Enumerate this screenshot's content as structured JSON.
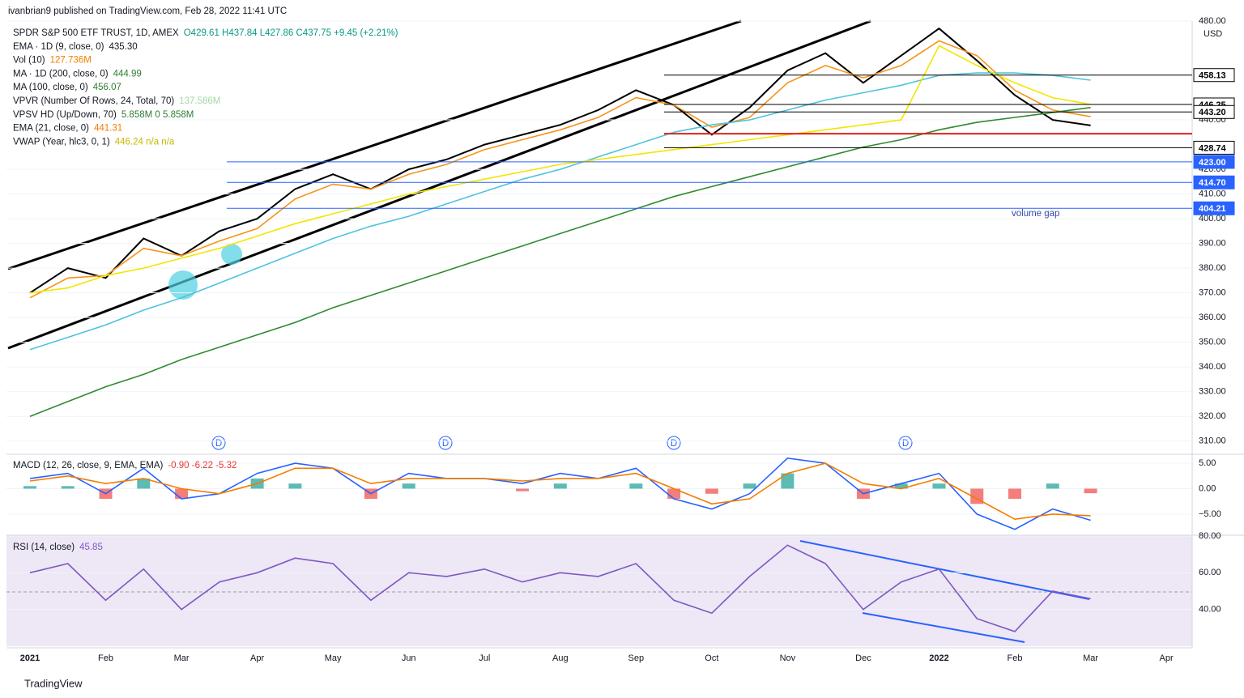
{
  "header": {
    "byline": "ivanbrian9 published on TradingView.com, Feb 28, 2022 11:41 UTC",
    "currency": "USD",
    "footer": "TradingView",
    "annotation": "volume gap",
    "dividend_markers": [
      "D",
      "D",
      "D",
      "D"
    ],
    "legend": [
      {
        "name": "SPDR S&P 500 ETF TRUST, 1D, AMEX",
        "value": "O429.61 H437.84 L427.86 C437.75 +9.45 (+2.21%)",
        "color": "#089981"
      },
      {
        "name": "EMA · 1D (9, close, 0)",
        "value": "435.30",
        "color": "#131722"
      },
      {
        "name": "Vol (10)",
        "value": "127.736M",
        "color": "#f57c00"
      },
      {
        "name": "MA · 1D (200, close, 0)",
        "value": "444.99",
        "color": "#2e7d32"
      },
      {
        "name": "MA (100, close, 0)",
        "value": "456.07",
        "color": "#2e7d32"
      },
      {
        "name": "VPVR (Number Of Rows, 24, Total, 70)",
        "value": "137.586M",
        "color": "#a5d6a7"
      },
      {
        "name": "VPSV HD (Up/Down, 70)",
        "value": "5.858M 0 5.858M",
        "color": "#2e7d32"
      },
      {
        "name": "EMA (21, close, 0)",
        "value": "441.31",
        "color": "#f57c00"
      },
      {
        "name": "VWAP (Year, hlc3, 0, 1)",
        "value": "446.24 n/a n/a",
        "color": "#c9b800"
      }
    ]
  },
  "chart_data": [
    {
      "type": "line",
      "categories": [
        "2021",
        null,
        "Feb",
        null,
        "Mar",
        null,
        "Apr",
        null,
        "May",
        null,
        "Jun",
        null,
        "Jul",
        null,
        "Aug",
        null,
        "Sep",
        null,
        "Oct",
        null,
        "Nov",
        null,
        "Dec",
        null,
        "2022",
        null,
        "Feb",
        null,
        "Mar",
        null,
        "Apr",
        null
      ],
      "series": [
        {
          "color": "#000000",
          "values": [
            370,
            380,
            376,
            392,
            385,
            395,
            400,
            412,
            418,
            412,
            420,
            424,
            430,
            434,
            438,
            444,
            452,
            446,
            434,
            445,
            460,
            467,
            455,
            466,
            477,
            464,
            450,
            440,
            437.75,
            null,
            null,
            null
          ]
        },
        {
          "color": "#f7931a",
          "values": [
            368,
            376,
            377,
            388,
            385,
            391,
            396,
            408,
            414,
            412,
            418,
            422,
            428,
            432,
            436,
            441,
            449,
            446,
            437,
            441,
            455,
            462,
            457,
            462,
            472,
            466,
            452,
            444,
            441.31,
            null,
            null,
            null
          ]
        },
        {
          "color": "#4fc3dd",
          "values": [
            347,
            352,
            357,
            363,
            368,
            374,
            380,
            386,
            392,
            397,
            401,
            406,
            411,
            416,
            420,
            425,
            430,
            435,
            438,
            440,
            444,
            448,
            451,
            454,
            458,
            459,
            459,
            458,
            456.07,
            null,
            null,
            null
          ]
        },
        {
          "color": "#2e8b2e",
          "values": [
            320,
            326,
            332,
            337,
            343,
            348,
            353,
            358,
            364,
            369,
            374,
            379,
            384,
            389,
            394,
            399,
            404,
            409,
            413,
            417,
            421,
            425,
            429,
            432,
            436,
            439,
            441,
            443,
            444.99,
            null,
            null,
            null
          ]
        },
        {
          "color": "#f2e600",
          "values": [
            370,
            372,
            377,
            380,
            384,
            388,
            393,
            398,
            402,
            406,
            410,
            413,
            416,
            419,
            422,
            424,
            426,
            428,
            430,
            432,
            434,
            436,
            438,
            440,
            470,
            462,
            455,
            449,
            446.24,
            null,
            null,
            null
          ]
        }
      ],
      "levels": [
        {
          "value": 458.13,
          "label": "458.13",
          "color": "#000000"
        },
        {
          "value": 446.25,
          "label": "446.25",
          "color": "#000000"
        },
        {
          "value": 443.2,
          "label": "443.20",
          "color": "#000000"
        },
        {
          "value": 434.4,
          "color": "#e0201b"
        },
        {
          "value": 428.74,
          "label": "428.74",
          "color": "#000000"
        },
        {
          "value": 423,
          "label": "423.00",
          "color": "#2962ff"
        },
        {
          "value": 414.7,
          "label": "414.70",
          "color": "#2962ff"
        },
        {
          "value": 404.21,
          "label": "404.21",
          "color": "#2962ff"
        }
      ],
      "ylim": [
        305,
        480
      ],
      "yticks": [
        {
          "value": 310,
          "label": "310.00"
        },
        {
          "value": 320,
          "label": "320.00"
        },
        {
          "value": 330,
          "label": "330.00"
        },
        {
          "value": 340,
          "label": "340.00"
        },
        {
          "value": 350,
          "label": "350.00"
        },
        {
          "value": 360,
          "label": "360.00"
        },
        {
          "value": 370,
          "label": "370.00"
        },
        {
          "value": 380,
          "label": "380.00"
        },
        {
          "value": 390,
          "label": "390.00"
        },
        {
          "value": 400,
          "label": "400.00"
        },
        {
          "value": 410,
          "label": "410.00"
        },
        {
          "value": 420,
          "label": "420.00"
        },
        {
          "value": 440,
          "label": "440.00"
        },
        {
          "value": 480,
          "label": "480.00"
        }
      ]
    },
    {
      "type": "line",
      "title": "MACD (12, 26, close, 9, EMA, EMA)",
      "title_value": "-0.90 -6.22 -5.32",
      "title_color": "#e53935",
      "series": [
        {
          "style": "bar",
          "color": "#26a69a",
          "negative_color": "#ef5350",
          "values": [
            0.5,
            0.5,
            -2,
            2,
            -2,
            0,
            2,
            1,
            0,
            -2,
            1,
            0,
            0,
            -0.5,
            1,
            0,
            1,
            -2,
            -1,
            1,
            3,
            0,
            -2,
            1,
            1,
            -3,
            -2,
            1,
            -0.9,
            null,
            null,
            null
          ]
        },
        {
          "color": "#2962ff",
          "values": [
            2,
            3,
            -1,
            4,
            -2,
            -1,
            3,
            5,
            4,
            -1,
            3,
            2,
            2,
            1,
            3,
            2,
            4,
            -2,
            -4,
            -1,
            6,
            5,
            -1,
            1,
            3,
            -5,
            -8,
            -4,
            -6.22,
            null,
            null,
            null
          ]
        },
        {
          "color": "#f57c00",
          "values": [
            1.5,
            2.5,
            1,
            2,
            0,
            -1,
            1,
            4,
            4,
            1,
            2,
            2,
            2,
            1.5,
            2,
            2,
            3,
            0,
            -3,
            -2,
            3,
            5,
            1,
            0,
            2,
            -2,
            -6,
            -5,
            -5.32,
            null,
            null,
            null
          ]
        }
      ],
      "ylim": [
        -9,
        6.6
      ],
      "yticks": [
        {
          "value": 5,
          "label": "5.00"
        },
        {
          "value": 0,
          "label": "0.00"
        },
        {
          "value": -5,
          "label": "−5.00"
        }
      ]
    },
    {
      "type": "line",
      "title": "RSI (14, close)",
      "title_value": "45.85",
      "title_color": "#7e57c2",
      "series": [
        {
          "color": "#7e57c2",
          "values": [
            60,
            65,
            45,
            62,
            40,
            55,
            60,
            68,
            65,
            45,
            60,
            58,
            62,
            55,
            60,
            58,
            65,
            45,
            38,
            58,
            75,
            65,
            40,
            55,
            62,
            35,
            28,
            50,
            45.85,
            null,
            null,
            null
          ]
        }
      ],
      "ylim": [
        20,
        80
      ],
      "yticks": [
        {
          "value": 40,
          "label": "40.00"
        },
        {
          "value": 60,
          "label": "60.00"
        },
        {
          "value": 80,
          "label": "80.00"
        }
      ]
    }
  ]
}
